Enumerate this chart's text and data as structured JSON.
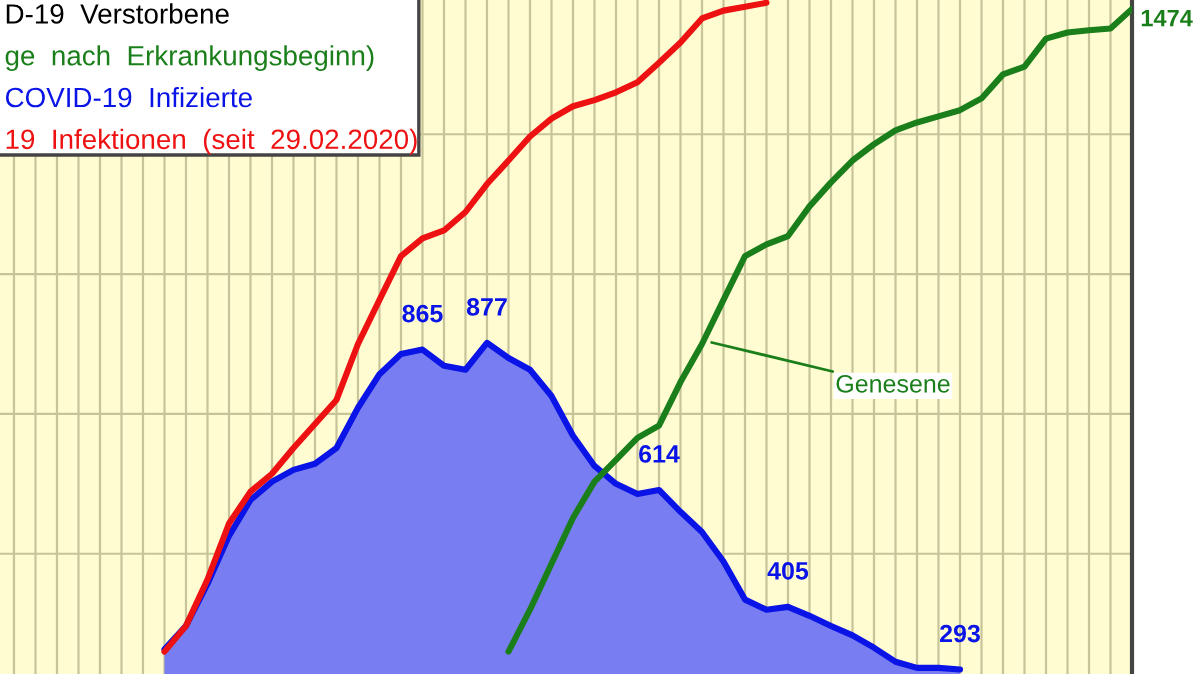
{
  "chart_data": {
    "type": "line",
    "categories": [
      null,
      null,
      null,
      null,
      null,
      null,
      null,
      null,
      null,
      null,
      null,
      null,
      null,
      null,
      null,
      null,
      null,
      null,
      null,
      null,
      null,
      null,
      null,
      null,
      null,
      null,
      null,
      null,
      null,
      null,
      null,
      null,
      null,
      null,
      null,
      null,
      null,
      null,
      null,
      null,
      null,
      null,
      null,
      null,
      null,
      null,
      null,
      null,
      null,
      null,
      null,
      null,
      null
    ],
    "series": [
      {
        "name": "COVID-19  Infizierte",
        "type": "area",
        "color": "#0a14e6",
        "values": [
          null,
          null,
          null,
          null,
          null,
          null,
          null,
          329,
          371,
          446,
          532,
          596,
          629,
          650,
          661,
          689,
          761,
          821,
          857,
          865,
          836,
          829,
          877,
          850,
          829,
          782,
          711,
          657,
          625,
          607,
          614,
          575,
          539,
          486,
          418,
          400,
          405,
          389,
          371,
          354,
          332,
          307,
          296,
          296,
          293,
          null,
          null,
          null,
          null,
          null,
          null,
          null,
          null
        ],
        "value_labels": [
          null,
          null,
          null,
          null,
          null,
          null,
          null,
          null,
          null,
          null,
          null,
          null,
          null,
          null,
          null,
          null,
          null,
          null,
          null,
          "865",
          null,
          null,
          "877",
          null,
          null,
          null,
          null,
          null,
          null,
          null,
          "614",
          null,
          null,
          null,
          null,
          null,
          "405",
          null,
          null,
          null,
          null,
          null,
          null,
          null,
          "293",
          null,
          null,
          null,
          null,
          null,
          null,
          null,
          null
        ]
      },
      {
        "name": "19  Infektionen  (seit  29.02.2020)",
        "color": "#ee1111",
        "values": [
          null,
          null,
          null,
          null,
          null,
          null,
          null,
          325,
          371,
          454,
          554,
          611,
          643,
          689,
          732,
          775,
          875,
          954,
          1032,
          1064,
          1078,
          1111,
          1161,
          1203,
          1246,
          1278,
          1300,
          1311,
          1325,
          1343,
          1378,
          1414,
          1457,
          1471,
          1478,
          1485,
          null,
          null,
          null,
          null,
          null,
          null,
          null,
          null,
          null,
          null,
          null,
          null,
          null,
          null,
          null,
          null,
          null
        ]
      },
      {
        "name": "ge  nach  Erkrankungsbeginn)",
        "color": "#1a7f1a",
        "values": [
          null,
          null,
          null,
          null,
          null,
          null,
          null,
          null,
          null,
          null,
          null,
          null,
          null,
          null,
          null,
          null,
          null,
          null,
          null,
          null,
          null,
          null,
          null,
          325,
          400,
          482,
          564,
          629,
          668,
          707,
          729,
          807,
          875,
          954,
          1032,
          1053,
          1068,
          1121,
          1164,
          1203,
          1232,
          1257,
          1271,
          1282,
          1293,
          1314,
          1357,
          1371,
          1421,
          1432,
          1436,
          1439,
          1474
        ],
        "value_labels": [
          null,
          null,
          null,
          null,
          null,
          null,
          null,
          null,
          null,
          null,
          null,
          null,
          null,
          null,
          null,
          null,
          null,
          null,
          null,
          null,
          null,
          null,
          null,
          null,
          null,
          null,
          null,
          null,
          null,
          null,
          null,
          null,
          null,
          null,
          null,
          null,
          null,
          null,
          null,
          null,
          null,
          null,
          null,
          null,
          null,
          null,
          null,
          null,
          null,
          null,
          null,
          null,
          "1474"
        ]
      }
    ],
    "annotations": [
      "D-19  Verstorbene",
      "Genesene"
    ],
    "ylim": [
      285,
      1490
    ],
    "yticks": [
      {
        "value": 500,
        "label": null
      },
      {
        "value": 750,
        "label": null
      },
      {
        "value": 1000,
        "label": null
      },
      {
        "value": 1250,
        "label": null
      }
    ],
    "grid": true,
    "legend": "top left"
  }
}
